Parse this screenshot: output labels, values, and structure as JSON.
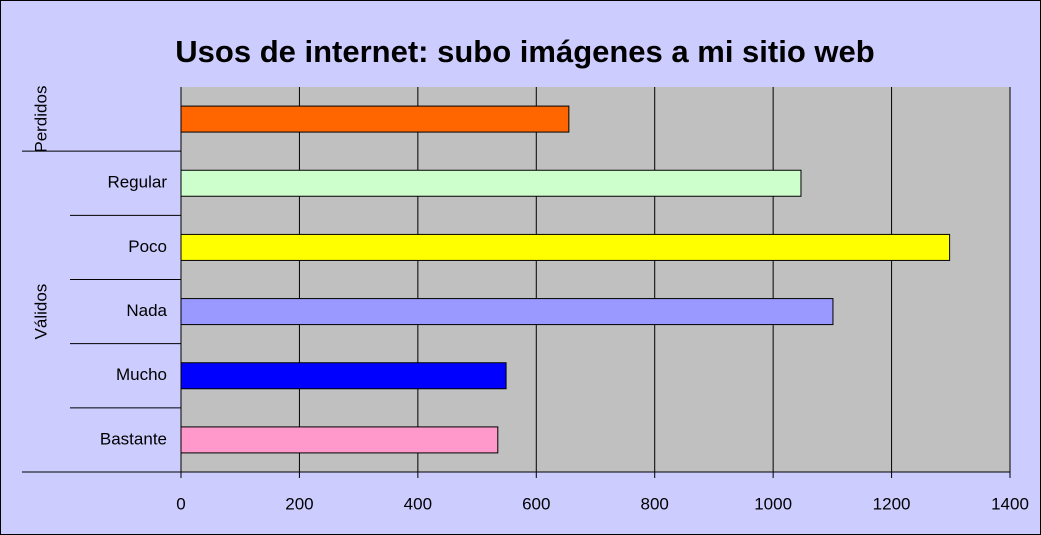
{
  "chart_data": {
    "type": "bar",
    "orientation": "horizontal",
    "title": "Usos de internet: subo imágenes a mi sitio web",
    "categories": [
      null,
      "Regular",
      "Poco",
      "Nada",
      "Mucho",
      "Bastante"
    ],
    "groups": [
      {
        "label": "Perdidos",
        "span": 1
      },
      {
        "label": "Válidos",
        "span": 5
      }
    ],
    "values": [
      655,
      1047,
      1298,
      1101,
      549,
      535
    ],
    "colors": [
      "#ff6600",
      "#ccffcc",
      "#ffff00",
      "#9999ff",
      "#0000ff",
      "#ff99cc"
    ],
    "xlim": [
      0,
      1400
    ],
    "xticks": [
      0,
      200,
      400,
      600,
      800,
      1000,
      1200,
      1400
    ],
    "grid": true
  }
}
